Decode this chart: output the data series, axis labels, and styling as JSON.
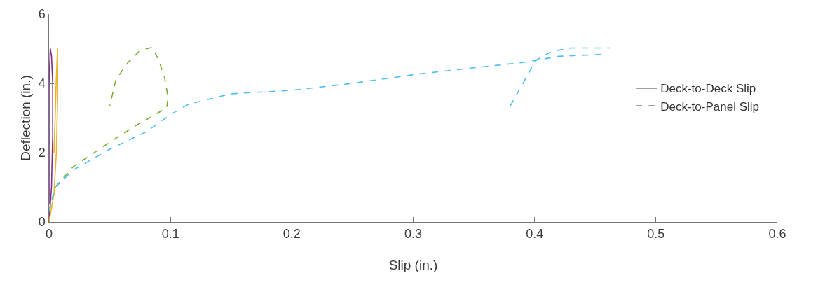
{
  "chart_data": {
    "type": "line",
    "xlabel": "Slip (in.)",
    "ylabel": "Deflection (in.)",
    "xlim": [
      0,
      0.6
    ],
    "ylim": [
      0,
      6
    ],
    "xticks": [
      0,
      0.1,
      0.2,
      0.3,
      0.4,
      0.5,
      0.6
    ],
    "yticks": [
      0,
      2,
      4,
      6
    ],
    "grid": false,
    "legend": "right",
    "series": [
      {
        "color": "#7e2f8e",
        "line_style": "solid",
        "x": [
          0,
          0.002,
          0.003,
          0.003,
          0.002,
          0.001,
          0,
          0,
          0
        ],
        "values": [
          0,
          1,
          2.5,
          4,
          4.8,
          5,
          4,
          2,
          0.5
        ]
      },
      {
        "color": "#edb120",
        "line_style": "solid",
        "x": [
          0,
          0.004,
          0.006,
          0.007,
          0.007,
          0.006,
          0.005,
          0.004
        ],
        "values": [
          0,
          0.8,
          2,
          3.5,
          5,
          4.2,
          3,
          2
        ]
      },
      {
        "color": "#77ac30",
        "line_style": "dashed",
        "x": [
          0,
          0.005,
          0.02,
          0.035,
          0.05,
          0.07,
          0.085,
          0.097,
          0.098,
          0.095,
          0.09,
          0.085,
          0.075,
          0.065,
          0.055,
          0.05
        ],
        "values": [
          0.3,
          1,
          1.6,
          1.95,
          2.3,
          2.75,
          3.05,
          3.3,
          3.6,
          4.2,
          4.7,
          5.04,
          4.95,
          4.6,
          4.1,
          3.35
        ]
      },
      {
        "color": "#4dbeee",
        "line_style": "dashed",
        "x": [
          0,
          0.005,
          0.02,
          0.05,
          0.08,
          0.1,
          0.115,
          0.15,
          0.2,
          0.25,
          0.3,
          0.35,
          0.39,
          0.42,
          0.457,
          null,
          0.38,
          0.401,
          0.414,
          0.43,
          0.462
        ],
        "values": [
          0.3,
          1,
          1.5,
          2.1,
          2.6,
          3.1,
          3.4,
          3.7,
          3.8,
          4.0,
          4.25,
          4.45,
          4.6,
          4.78,
          4.84,
          null,
          3.35,
          4.66,
          4.92,
          5.02,
          5.02
        ]
      },
      {
        "name": "Deck-to-Deck Slip",
        "color": "#808080",
        "line_style": "solid",
        "x": [
          null
        ],
        "values": [
          null
        ]
      },
      {
        "name": "Deck-to-Panel Slip",
        "color": "#808080",
        "line_style": "dashed",
        "x": [
          null
        ],
        "values": [
          null
        ]
      }
    ]
  }
}
